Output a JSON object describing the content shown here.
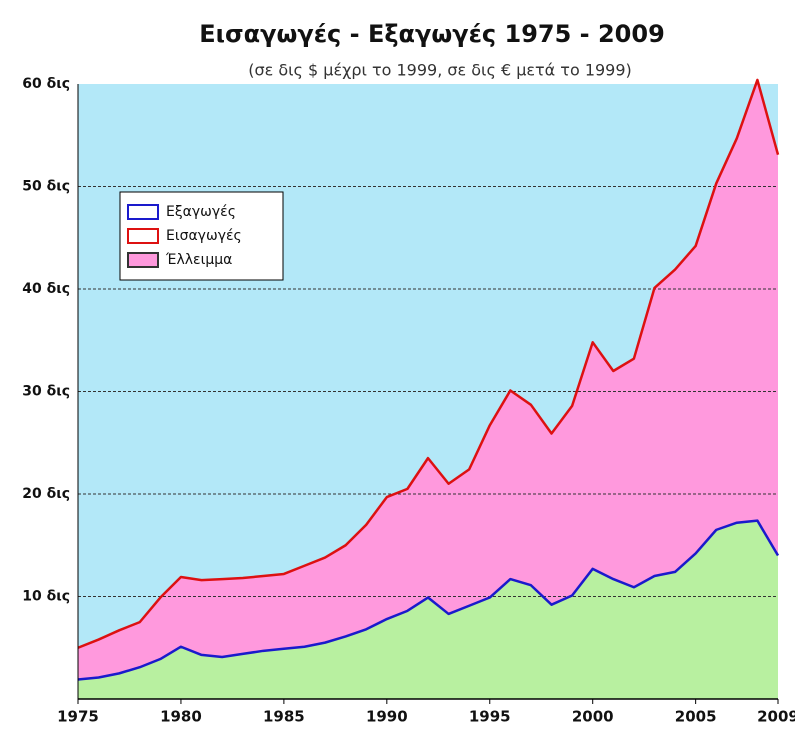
{
  "chart_data": {
    "type": "area-line",
    "title": "Εισαγωγές - Εξαγωγές 1975 - 2009",
    "subtitle": "(σε δις $ μέχρι το 1999, σε δις € μετά το 1999)",
    "x": [
      1975,
      1976,
      1977,
      1978,
      1979,
      1980,
      1981,
      1982,
      1983,
      1984,
      1985,
      1986,
      1987,
      1988,
      1989,
      1990,
      1991,
      1992,
      1993,
      1994,
      1995,
      1996,
      1997,
      1998,
      1999,
      2000,
      2001,
      2002,
      2003,
      2004,
      2005,
      2006,
      2007,
      2008,
      2009
    ],
    "series": [
      {
        "name": "Εξαγωγές",
        "color": "#1a1acc",
        "fill": "#b8f0a0",
        "values": [
          1.9,
          2.1,
          2.5,
          3.1,
          3.9,
          5.1,
          4.3,
          4.1,
          4.4,
          4.7,
          4.9,
          5.1,
          5.5,
          6.1,
          6.8,
          7.8,
          8.6,
          9.9,
          8.3,
          9.1,
          9.9,
          11.7,
          11.1,
          9.2,
          10.1,
          12.7,
          11.7,
          10.9,
          12.0,
          12.4,
          14.2,
          16.5,
          17.2,
          17.4,
          14.0
        ]
      },
      {
        "name": "Εισαγωγές",
        "color": "#dd1111",
        "values": [
          5.0,
          5.8,
          6.7,
          7.5,
          9.9,
          11.9,
          11.6,
          11.7,
          11.8,
          12.0,
          12.2,
          13.0,
          13.8,
          15.0,
          17.0,
          19.7,
          20.5,
          23.5,
          21.0,
          22.4,
          26.7,
          30.1,
          28.7,
          25.9,
          28.6,
          34.8,
          32.0,
          33.2,
          40.1,
          41.9,
          44.2,
          50.3,
          54.7,
          60.4,
          53.1
        ]
      }
    ],
    "gap_area": {
      "name": "Έλλειμμα",
      "color": "#ff99dd"
    },
    "background": "#b3e8f8",
    "xlim": [
      1975,
      2009
    ],
    "xticks": [
      1975,
      1980,
      1985,
      1990,
      1995,
      2000,
      2005,
      2009
    ],
    "ylim": [
      0,
      60
    ],
    "yticks": [
      {
        "value": 10,
        "label": "10 δις"
      },
      {
        "value": 20,
        "label": "20 δις"
      },
      {
        "value": 30,
        "label": "30 δις"
      },
      {
        "value": 40,
        "label": "40 δις"
      },
      {
        "value": 50,
        "label": "50 δις"
      },
      {
        "value": 60,
        "label": "60 δις"
      }
    ],
    "grid": true,
    "legend": "upper left"
  }
}
